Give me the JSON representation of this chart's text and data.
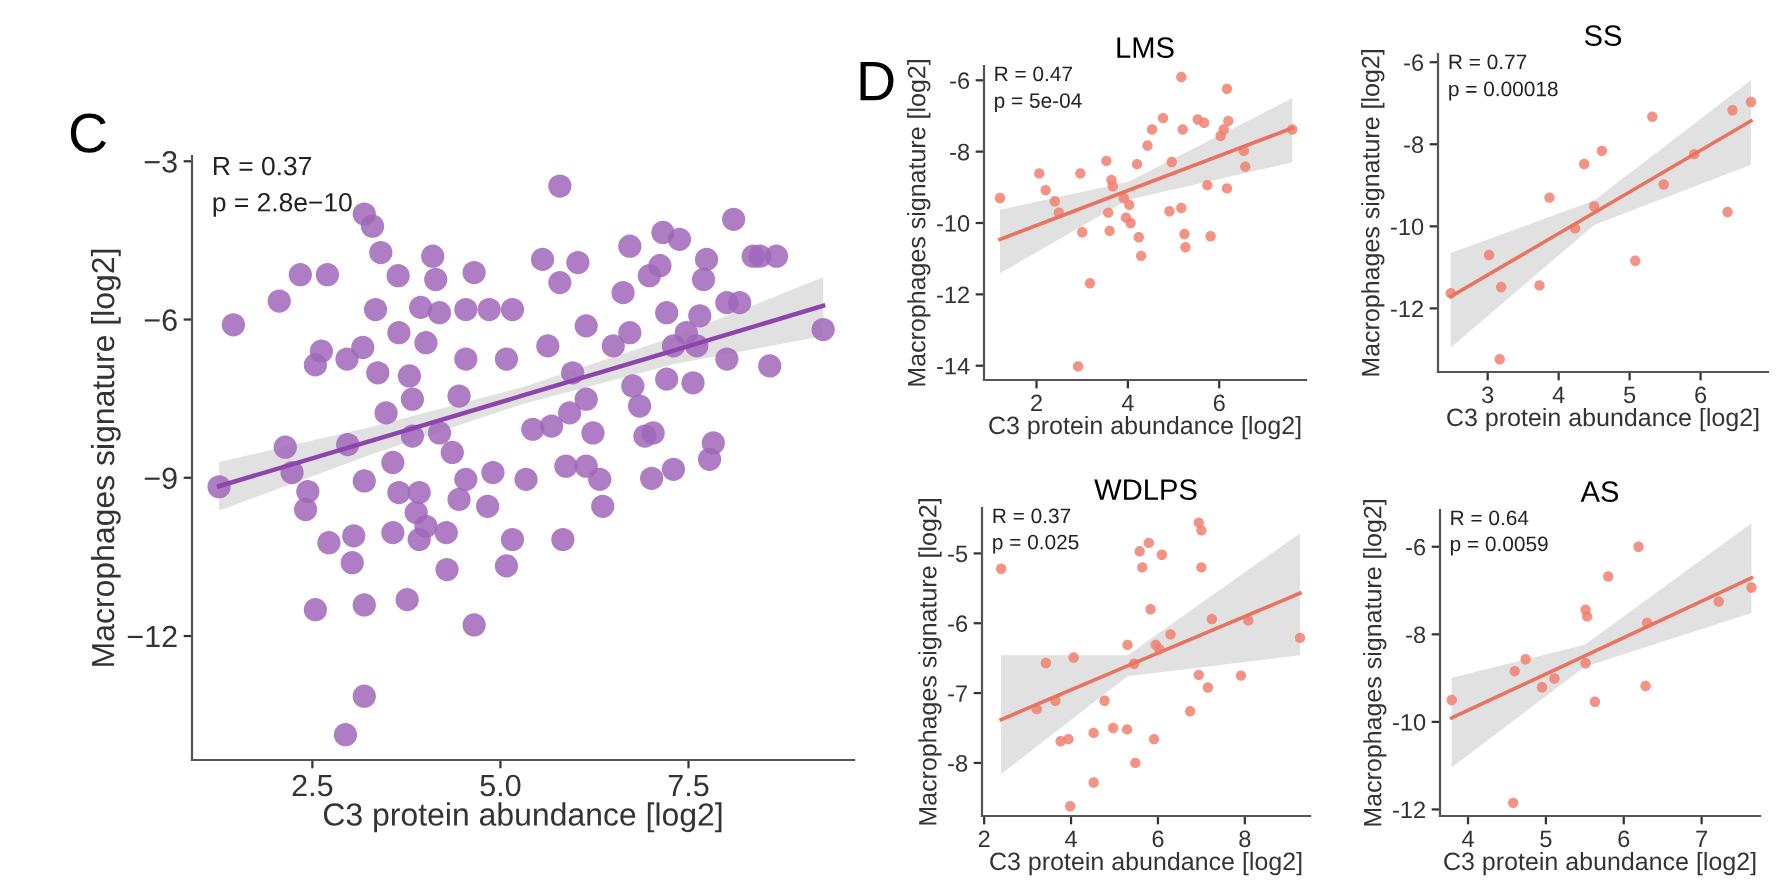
{
  "chart_data": [
    {
      "type": "scatter",
      "xlabel": "C3 protein abundance [log2]",
      "ylabel": "Macrophages signature [log2]",
      "annotations": [
        "C",
        "R = 0.37",
        "p = 2.8e−10"
      ],
      "xlim": [
        0.9,
        9.7
      ],
      "ylim": [
        -14.35,
        -2.9
      ],
      "xticks": [
        2.5,
        {
          "value": 5,
          "label": "5.0"
        },
        7.5
      ],
      "yticks": [
        {
          "value": -3,
          "label": "−3"
        },
        {
          "value": -6,
          "label": "−6"
        },
        {
          "value": -9,
          "label": "−9"
        },
        {
          "value": -12,
          "label": "−12"
        }
      ],
      "grid": false,
      "series": [
        {
          "marker": "circle",
          "color": "#a066b8",
          "x": [
            1.45,
            1.26,
            2.06,
            2.14,
            2.23,
            2.34,
            2.7,
            2.54,
            2.62,
            2.44,
            2.41,
            2.54,
            2.72,
            2.96,
            2.97,
            3.19,
            3.19,
            3.3,
            3.41,
            3.05,
            3.03,
            3.19,
            3.19,
            2.94,
            3.76,
            3.57,
            3.92,
            3.34,
            3.17,
            3.37,
            3.48,
            3.64,
            3.65,
            3.57,
            3.65,
            3.92,
            3.88,
            4.01,
            4.29,
            4.28,
            4.1,
            4.14,
            3.94,
            4.01,
            3.83,
            4.19,
            4.54,
            4.65,
            4.65,
            4.54,
            4.45,
            4.19,
            4.36,
            4.45,
            4.85,
            4.83,
            4.9,
            5.16,
            5.16,
            5.08,
            5.34,
            5.56,
            5.63,
            5.79,
            5.79,
            5.83,
            5.68,
            5.87,
            6.03,
            5.96,
            5.92,
            6.14,
            6.14,
            6.23,
            6.14,
            6.36,
            6.32,
            6.5,
            6.63,
            6.72,
            6.72,
            6.76,
            6.85,
            6.92,
            7.03,
            7.01,
            7.3,
            6.98,
            7.16,
            7.12,
            7.38,
            7.21,
            7.3,
            7.21,
            7.47,
            7.56,
            7.74,
            7.7,
            7.65,
            7.83,
            7.78,
            8.01,
            8.01,
            8.1,
            8.18,
            8.36,
            8.45,
            8.67,
            8.58,
            9.29,
            7.61,
            5.43,
            5.08,
            4.54,
            3.83,
            3.79
          ],
          "values": [
            -6.1,
            -9.17,
            -5.65,
            -8.42,
            -8.9,
            -5.15,
            -5.15,
            -6.86,
            -6.6,
            -9.26,
            -9.6,
            -11.5,
            -10.23,
            -6.75,
            -8.37,
            -9.06,
            -4.0,
            -4.23,
            -4.73,
            -10.1,
            -10.61,
            -11.41,
            -13.14,
            -13.87,
            -11.31,
            -10.04,
            -10.17,
            -5.81,
            -6.53,
            -7.01,
            -7.77,
            -5.17,
            -6.25,
            -8.71,
            -9.28,
            -9.28,
            -9.66,
            -9.92,
            -10.74,
            -10.04,
            -4.8,
            -5.24,
            -5.77,
            -6.44,
            -7.51,
            -5.87,
            -5.81,
            -5.11,
            -11.79,
            -6.75,
            -7.45,
            -8.15,
            -8.52,
            -9.41,
            -5.81,
            -9.54,
            -8.9,
            -5.81,
            -10.17,
            -10.67,
            -9.03,
            -4.86,
            -6.5,
            -3.47,
            -5.3,
            -10.17,
            -8.02,
            -8.78,
            -4.92,
            -7.01,
            -7.77,
            -6.12,
            -7.51,
            -8.15,
            -8.78,
            -9.54,
            -9.03,
            -6.5,
            -5.49,
            -4.61,
            -6.25,
            -7.26,
            -7.64,
            -8.21,
            -8.15,
            -9.01,
            -8.84,
            -5.17,
            -4.35,
            -4.98,
            -4.48,
            -5.87,
            -6.5,
            -7.13,
            -6.25,
            -7.2,
            -4.86,
            -5.24,
            -5.93,
            -8.34,
            -8.65,
            -6.75,
            -5.68,
            -4.1,
            -5.68,
            -4.8,
            -4.8,
            -4.8,
            -6.88,
            -6.19,
            -6.5,
            -8.08,
            -6.75,
            -9.03,
            -8.21,
            -7.07
          ]
        },
        {
          "type": "line",
          "color": "#8e44ad",
          "x": [
            1.26,
            3.3,
            5.3,
            7.3,
            9.29
          ],
          "values": [
            -9.16,
            -8.29,
            -7.44,
            -6.59,
            -5.74
          ],
          "lower": [
            -9.62,
            -8.55,
            -7.6,
            -6.85,
            -6.31
          ],
          "upper": [
            -8.7,
            -8.03,
            -7.28,
            -6.33,
            -5.2
          ]
        }
      ]
    },
    {
      "type": "scatter",
      "title": "LMS",
      "xlabel": "C3 protein abundance [log2]",
      "ylabel": "Macrophages signature [log2]",
      "annotations": [
        "D",
        "R = 0.47",
        "p = 5e-04"
      ],
      "xlim": [
        0.85,
        7.9
      ],
      "ylim": [
        -14.4,
        -5.6
      ],
      "xticks": [
        2,
        4,
        6
      ],
      "yticks": [
        -6,
        -8,
        -10,
        -12,
        -14
      ],
      "grid": false,
      "series": [
        {
          "marker": "circle",
          "color": "#f08070",
          "x": [
            1.2,
            2.06,
            2.2,
            2.4,
            2.49,
            2.96,
            3.0,
            3.17,
            2.91,
            3.53,
            3.64,
            3.67,
            3.57,
            3.6,
            3.91,
            3.96,
            4.03,
            4.06,
            4.2,
            4.24,
            4.29,
            4.43,
            4.53,
            4.77,
            4.91,
            4.96,
            5.17,
            5.2,
            5.17,
            5.24,
            5.26,
            5.53,
            5.67,
            5.74,
            5.81,
            6.03,
            6.1,
            6.17,
            6.17,
            6.2,
            6.54,
            6.57,
            7.6
          ],
          "values": [
            -9.3,
            -8.61,
            -9.08,
            -9.39,
            -9.71,
            -8.61,
            -10.26,
            -11.69,
            -14.02,
            -8.26,
            -8.79,
            -8.97,
            -9.71,
            -10.22,
            -9.3,
            -9.85,
            -9.49,
            -10.0,
            -8.35,
            -10.4,
            -10.92,
            -7.83,
            -7.38,
            -7.06,
            -9.67,
            -8.29,
            -5.91,
            -7.38,
            -9.58,
            -10.31,
            -10.68,
            -7.1,
            -7.19,
            -8.94,
            -10.37,
            -7.56,
            -7.38,
            -9.03,
            -6.24,
            -7.14,
            -7.98,
            -8.42,
            -7.38
          ]
        },
        {
          "type": "line",
          "color": "#e8735f",
          "x": [
            1.2,
            4.0,
            7.6
          ],
          "values": [
            -10.46,
            -9.09,
            -7.34
          ],
          "lower": [
            -11.41,
            -9.35,
            -8.3
          ],
          "upper": [
            -9.63,
            -8.85,
            -6.5
          ]
        }
      ]
    },
    {
      "type": "scatter",
      "title": "SS",
      "xlabel": "C3 protein abundance [log2]",
      "ylabel": "Macrophages signature [log2]",
      "annotations": [
        "R = 0.77",
        "p = 0.00018"
      ],
      "xlim": [
        2.3,
        6.95
      ],
      "ylim": [
        -13.55,
        -5.8
      ],
      "xticks": [
        3,
        4,
        5,
        6
      ],
      "yticks": [
        -6,
        -8,
        -10,
        -12
      ],
      "grid": false,
      "series": [
        {
          "marker": "circle",
          "color": "#f08070",
          "x": [
            2.48,
            3.02,
            3.19,
            3.73,
            3.87,
            4.23,
            4.36,
            4.5,
            4.61,
            5.08,
            5.32,
            5.48,
            5.91,
            6.38,
            6.45,
            6.71,
            3.17
          ],
          "values": [
            -11.63,
            -10.7,
            -11.48,
            -11.44,
            -9.3,
            -10.05,
            -8.48,
            -9.51,
            -8.16,
            -10.84,
            -7.33,
            -8.98,
            -8.24,
            -9.65,
            -7.17,
            -6.97,
            -13.24
          ]
        },
        {
          "type": "line",
          "color": "#e8735f",
          "x": [
            2.48,
            4.5,
            6.71
          ],
          "values": [
            -11.71,
            -9.67,
            -7.43
          ],
          "lower": [
            -12.95,
            -9.97,
            -8.5
          ],
          "upper": [
            -10.65,
            -9.37,
            -6.44
          ]
        }
      ]
    },
    {
      "type": "scatter",
      "title": "WDLPS",
      "xlabel": "C3 protein abundance [log2]",
      "ylabel": "Macrophages signature [log2]",
      "annotations": [
        "R = 0.37",
        "p = 0.025"
      ],
      "xlim": [
        1.95,
        9.5
      ],
      "ylim": [
        -8.76,
        -4.35
      ],
      "xticks": [
        2,
        4,
        6,
        8
      ],
      "yticks": [
        -5,
        -6,
        -7,
        -8
      ],
      "grid": false,
      "series": [
        {
          "marker": "circle",
          "color": "#f08070",
          "x": [
            2.39,
            3.21,
            3.42,
            3.64,
            4.06,
            3.76,
            3.94,
            3.98,
            4.77,
            4.52,
            4.52,
            4.97,
            5.29,
            5.3,
            5.45,
            5.48,
            5.58,
            5.64,
            5.79,
            5.83,
            5.91,
            5.95,
            6.03,
            6.09,
            6.29,
            6.94,
            6.74,
            7.15,
            7.0,
            7.24,
            6.94,
            7.0,
            7.91,
            8.08,
            9.27
          ],
          "values": [
            -5.22,
            -7.23,
            -6.57,
            -7.11,
            -6.49,
            -7.69,
            -7.66,
            -8.62,
            -7.11,
            -7.57,
            -8.28,
            -7.5,
            -7.52,
            -6.31,
            -6.58,
            -8.0,
            -4.97,
            -5.2,
            -4.85,
            -5.8,
            -7.66,
            -6.31,
            -6.37,
            -5.02,
            -6.16,
            -6.74,
            -7.26,
            -6.92,
            -5.2,
            -5.94,
            -4.56,
            -4.67,
            -6.75,
            -5.96,
            -6.21
          ]
        },
        {
          "type": "line",
          "color": "#e8735f",
          "x": [
            2.39,
            5.3,
            9.27
          ],
          "values": [
            -7.38,
            -6.61,
            -5.57
          ],
          "lower": [
            -8.16,
            -6.76,
            -6.46
          ],
          "upper": [
            -6.46,
            -6.46,
            -4.71
          ]
        }
      ]
    },
    {
      "type": "scatter",
      "title": "AS",
      "xlabel": "C3 protein abundance [log2]",
      "ylabel": "Macrophages signature [log2]",
      "annotations": [
        "R = 0.64",
        "p = 0.0059"
      ],
      "xlim": [
        3.64,
        7.75
      ],
      "ylim": [
        -12.15,
        -5.16
      ],
      "xticks": [
        4,
        5,
        6,
        7
      ],
      "yticks": [
        -6,
        -8,
        -10,
        -12
      ],
      "grid": false,
      "series": [
        {
          "marker": "circle",
          "color": "#f08070",
          "x": [
            3.79,
            4.6,
            4.74,
            4.95,
            5.11,
            5.51,
            5.53,
            5.51,
            5.63,
            5.8,
            6.19,
            6.3,
            6.28,
            7.22,
            7.64,
            4.58
          ],
          "values": [
            -9.5,
            -8.84,
            -8.57,
            -9.21,
            -9.01,
            -7.44,
            -7.59,
            -8.66,
            -9.54,
            -6.68,
            -6.0,
            -7.74,
            -9.18,
            -7.25,
            -6.93,
            -11.85
          ]
        },
        {
          "type": "line",
          "color": "#e8735f",
          "x": [
            3.79,
            5.5,
            7.64
          ],
          "values": [
            -9.91,
            -8.49,
            -6.71
          ],
          "lower": [
            -11.04,
            -8.74,
            -7.51
          ],
          "upper": [
            -8.99,
            -8.24,
            -5.46
          ]
        }
      ]
    }
  ]
}
